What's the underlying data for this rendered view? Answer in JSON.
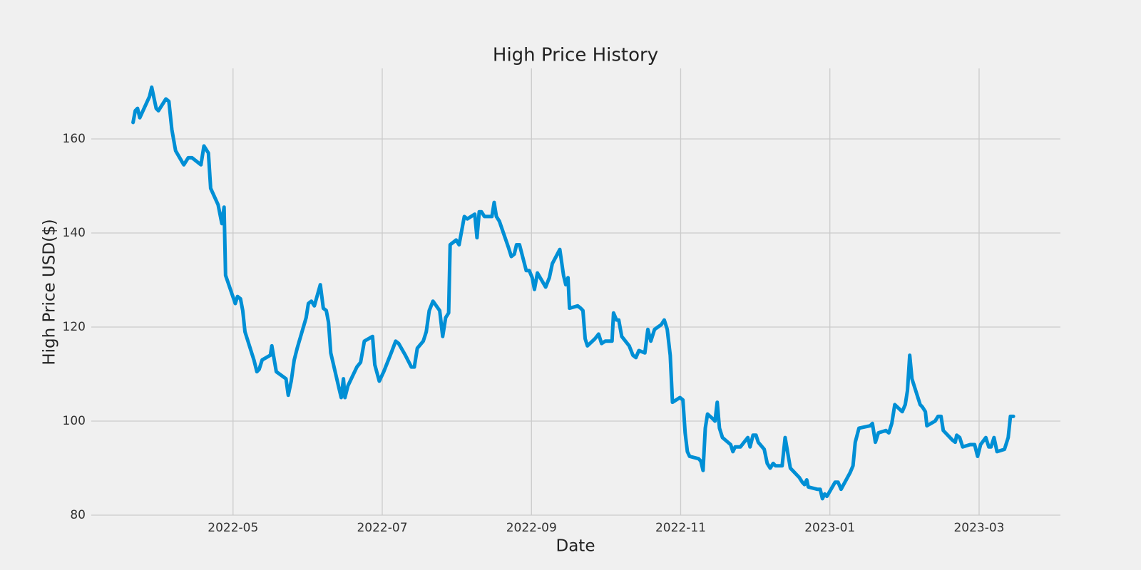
{
  "chart_data": {
    "type": "line",
    "title": "High Price History",
    "x_label": "Date",
    "y_label": "High Price USD($)",
    "color": "#008fd5",
    "grid": true,
    "xlim": [
      3.1,
      16.09
    ],
    "ylim": [
      80,
      175
    ],
    "xticks": [
      {
        "value": 5,
        "label": "2022-05"
      },
      {
        "value": 7,
        "label": "2022-07"
      },
      {
        "value": 9,
        "label": "2022-09"
      },
      {
        "value": 11,
        "label": "2022-11"
      },
      {
        "value": 13,
        "label": "2023-01"
      },
      {
        "value": 15,
        "label": "2023-03"
      }
    ],
    "yticks": [
      80,
      100,
      120,
      140,
      160
    ],
    "x": [
      3.66,
      3.69,
      3.72,
      3.75,
      3.88,
      3.91,
      3.97,
      4.0,
      4.1,
      4.14,
      4.18,
      4.23,
      4.34,
      4.4,
      4.45,
      4.57,
      4.61,
      4.67,
      4.7,
      4.8,
      4.85,
      4.88,
      4.9,
      5.03,
      5.06,
      5.1,
      5.13,
      5.16,
      5.28,
      5.32,
      5.35,
      5.39,
      5.5,
      5.52,
      5.58,
      5.71,
      5.74,
      5.78,
      5.82,
      5.86,
      5.98,
      6.01,
      6.05,
      6.09,
      6.17,
      6.21,
      6.25,
      6.28,
      6.31,
      6.42,
      6.45,
      6.48,
      6.5,
      6.54,
      6.66,
      6.71,
      6.76,
      6.87,
      6.9,
      6.96,
      7.02,
      7.12,
      7.18,
      7.22,
      7.31,
      7.39,
      7.43,
      7.47,
      7.55,
      7.59,
      7.63,
      7.68,
      7.77,
      7.81,
      7.85,
      7.89,
      7.91,
      7.99,
      8.03,
      8.1,
      8.14,
      8.24,
      8.27,
      8.3,
      8.33,
      8.37,
      8.47,
      8.5,
      8.53,
      8.57,
      8.69,
      8.73,
      8.77,
      8.8,
      8.84,
      8.93,
      8.97,
      9.01,
      9.04,
      9.08,
      9.19,
      9.24,
      9.28,
      9.38,
      9.43,
      9.46,
      9.49,
      9.51,
      9.62,
      9.66,
      9.69,
      9.72,
      9.75,
      9.85,
      9.9,
      9.94,
      9.99,
      10.08,
      10.1,
      10.14,
      10.17,
      10.21,
      10.31,
      10.36,
      10.4,
      10.44,
      10.52,
      10.56,
      10.6,
      10.65,
      10.74,
      10.78,
      10.82,
      10.86,
      10.89,
      10.99,
      11.03,
      11.06,
      11.09,
      11.12,
      11.24,
      11.27,
      11.3,
      11.33,
      11.36,
      11.43,
      11.46,
      11.49,
      11.52,
      11.56,
      11.67,
      11.7,
      11.73,
      11.8,
      11.9,
      11.93,
      11.97,
      12.01,
      12.04,
      12.12,
      12.16,
      12.2,
      12.24,
      12.27,
      12.36,
      12.4,
      12.47,
      12.59,
      12.63,
      12.66,
      12.69,
      12.71,
      12.83,
      12.87,
      12.9,
      12.93,
      12.96,
      13.07,
      13.11,
      13.15,
      13.27,
      13.31,
      13.34,
      13.39,
      13.54,
      13.57,
      13.61,
      13.65,
      13.75,
      13.79,
      13.83,
      13.87,
      13.97,
      14.01,
      14.04,
      14.07,
      14.1,
      14.21,
      14.24,
      14.28,
      14.3,
      14.41,
      14.45,
      14.49,
      14.52,
      14.64,
      14.68,
      14.7,
      14.74,
      14.78,
      14.88,
      14.94,
      14.98,
      15.02,
      15.09,
      15.13,
      15.16,
      15.2,
      15.24,
      15.34,
      15.39,
      15.42,
      15.46
    ],
    "values": [
      163.5,
      166,
      166.5,
      164.5,
      169,
      171,
      166.5,
      166,
      168.5,
      168,
      162,
      157.5,
      154.5,
      156,
      156,
      154.5,
      158.5,
      157,
      149.5,
      146,
      142,
      145.5,
      131,
      125,
      126.5,
      126,
      123.5,
      119,
      113,
      110.5,
      111,
      113,
      114,
      116,
      110.5,
      109,
      105.5,
      108.5,
      113,
      115.5,
      122,
      125,
      125.5,
      124.5,
      129,
      124,
      123.5,
      121,
      114.5,
      107,
      105,
      109,
      105,
      107.5,
      111.5,
      112.5,
      117,
      118,
      112,
      108.5,
      110.5,
      114.5,
      117,
      116.5,
      114,
      111.5,
      111.5,
      115.5,
      117,
      119,
      123.5,
      125.5,
      123.5,
      118,
      122,
      123,
      137.5,
      138.5,
      137.5,
      143.5,
      143,
      144,
      139,
      144.5,
      144.5,
      143.5,
      143.5,
      146.5,
      143.5,
      142.5,
      137,
      135,
      135.5,
      137.5,
      137.5,
      132,
      132,
      130.5,
      128,
      131.5,
      128.5,
      130.5,
      133.5,
      136.5,
      131,
      129,
      130.5,
      124,
      124.5,
      124,
      123.5,
      117.5,
      116,
      117.5,
      118.5,
      116.5,
      117,
      117,
      123,
      121.5,
      121.5,
      118,
      116,
      114,
      113.5,
      115,
      114.5,
      119.5,
      117,
      119.5,
      120.5,
      121.5,
      119.5,
      114,
      104,
      105,
      104.5,
      97.5,
      93.5,
      92.5,
      92,
      91.5,
      89.5,
      98.5,
      101.5,
      100.5,
      100,
      104,
      98.5,
      96.5,
      95,
      93.5,
      94.5,
      94.5,
      96.5,
      94.5,
      97,
      97,
      95.5,
      94,
      91,
      90,
      91,
      90.5,
      90.5,
      96.5,
      90,
      88,
      87,
      86.5,
      87.5,
      86,
      85.5,
      85.5,
      83.5,
      84.5,
      84,
      87,
      87,
      85.5,
      89,
      90.5,
      95.5,
      98.5,
      99,
      99.5,
      95.5,
      97.5,
      98,
      97.5,
      99.5,
      103.5,
      102,
      103.5,
      106.5,
      114,
      109,
      103.5,
      103,
      102,
      99,
      100,
      101,
      101,
      98,
      96,
      95.5,
      97,
      96.5,
      94.5,
      95,
      95,
      92.5,
      95,
      96.5,
      94.5,
      94.5,
      96.5,
      93.5,
      94,
      96.5,
      101,
      101
    ]
  }
}
